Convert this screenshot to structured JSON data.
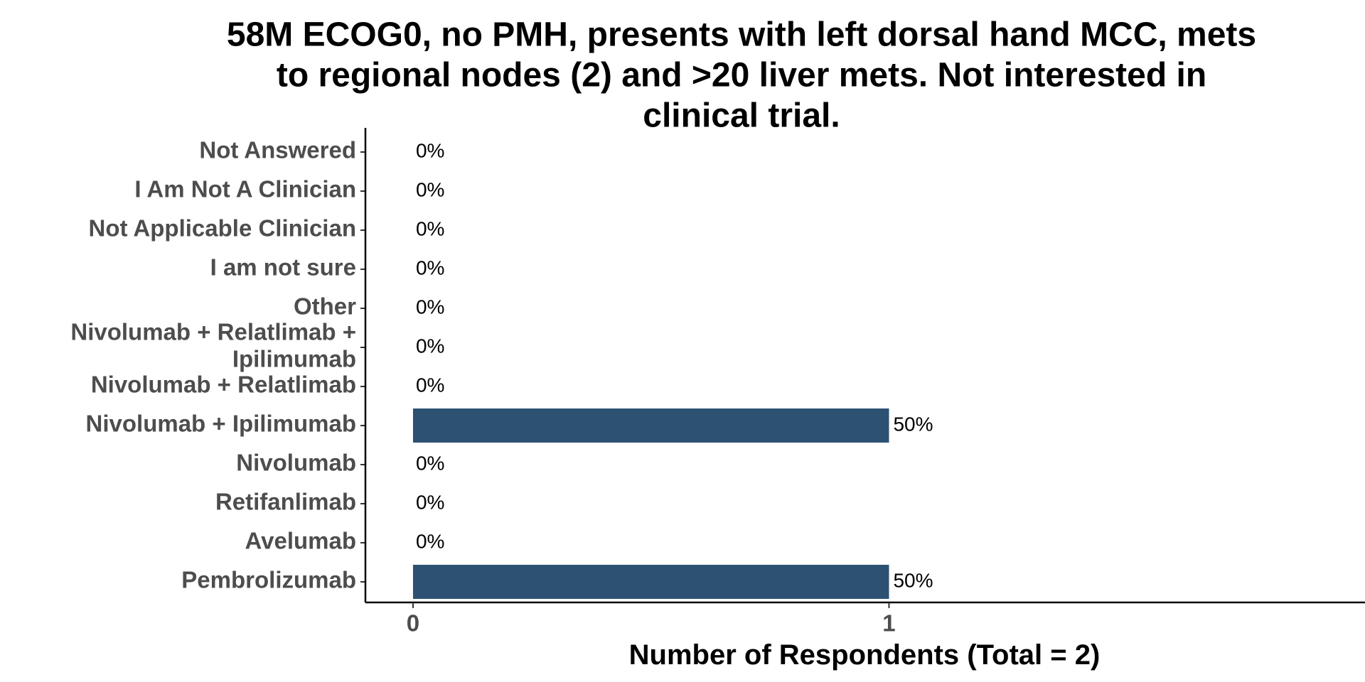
{
  "chart_data": {
    "type": "bar",
    "orientation": "horizontal",
    "title_lines": [
      "58M ECOG0, no PMH, presents with left dorsal hand MCC, mets",
      "to regional nodes (2) and >20 liver mets. Not interested in",
      "clinical trial."
    ],
    "title": "58M ECOG0, no PMH, presents with left dorsal hand MCC, mets to regional nodes (2) and >20 liver mets. Not interested in clinical trial.",
    "xlabel": "Number of Respondents (Total = 2)",
    "ylabel": "",
    "categories": [
      "Not Answered",
      "I Am Not A Clinician",
      "Not Applicable Clinician",
      "I am not sure",
      "Other",
      "Nivolumab + Relatlimab + Ipilimumab",
      "Nivolumab + Relatlimab",
      "Nivolumab + Ipilimumab",
      "Nivolumab",
      "Retifanlimab",
      "Avelumab",
      "Pembrolizumab"
    ],
    "category_label_lines": [
      [
        "Not Answered"
      ],
      [
        "I Am Not A Clinician"
      ],
      [
        "Not Applicable Clinician"
      ],
      [
        "I am not sure"
      ],
      [
        "Other"
      ],
      [
        "Nivolumab + Relatlimab +",
        "Ipilimumab"
      ],
      [
        "Nivolumab + Relatlimab"
      ],
      [
        "Nivolumab + Ipilimumab"
      ],
      [
        "Nivolumab"
      ],
      [
        "Retifanlimab"
      ],
      [
        "Avelumab"
      ],
      [
        "Pembrolizumab"
      ]
    ],
    "values": [
      0,
      0,
      0,
      0,
      0,
      0,
      0,
      1,
      0,
      0,
      0,
      1
    ],
    "labels": [
      "0%",
      "0%",
      "0%",
      "0%",
      "0%",
      "0%",
      "0%",
      "50%",
      "0%",
      "0%",
      "0%",
      "50%"
    ],
    "x_ticks": [
      0,
      1
    ],
    "x_tick_labels": [
      "0",
      "1"
    ],
    "xlim": [
      -0.1,
      2.0
    ],
    "bar_color": "#2c5173",
    "grid": false,
    "legend": "none"
  }
}
